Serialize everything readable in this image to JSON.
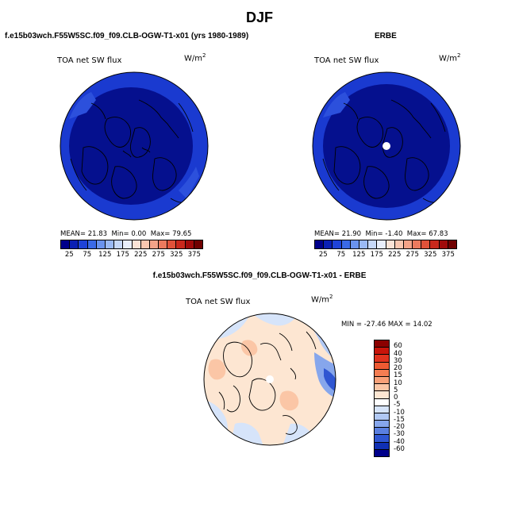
{
  "title": "DJF",
  "panel_left": {
    "case": "f.e15b03wch.F55W5SC.f09_f09.CLB-OGW-T1-x01 (yrs 1980-1989)",
    "variable": "TOA net SW flux",
    "units_base": "W/m",
    "units_exp": "2",
    "mean_label": "MEAN=",
    "mean": "21.83",
    "min_label": "Min=",
    "min": "0.00",
    "max_label": "Max=",
    "max": "79.65"
  },
  "panel_right": {
    "case": "ERBE",
    "variable": "TOA net SW flux",
    "units_base": "W/m",
    "units_exp": "2",
    "mean_label": "MEAN=",
    "mean": "21.90",
    "min_label": "Min=",
    "min": "-1.40",
    "max_label": "Max=",
    "max": "67.83"
  },
  "panel_diff": {
    "case": "f.e15b03wch.F55W5SC.f09_f09.CLB-OGW-T1-x01 - ERBE",
    "variable": "TOA net SW flux",
    "units_base": "W/m",
    "units_exp": "2",
    "stats": "MIN = -27.46 MAX =  14.02"
  },
  "colorbar_top": {
    "ticks": [
      "25",
      "75",
      "125",
      "175",
      "225",
      "275",
      "325",
      "375"
    ],
    "colors": [
      "#00008b",
      "#0a1fb4",
      "#1f43d8",
      "#3b6ae6",
      "#6a93ee",
      "#9ab9f4",
      "#c6d8f8",
      "#e8eefb",
      "#fbe3d6",
      "#f9c7b0",
      "#f4a388",
      "#ec7a5e",
      "#e0523a",
      "#c8281c",
      "#a00a0a",
      "#700000"
    ]
  },
  "colorbar_diff": {
    "ticks": [
      "60",
      "40",
      "30",
      "20",
      "15",
      "10",
      "5",
      "0",
      "-5",
      "-10",
      "-15",
      "-20",
      "-30",
      "-40",
      "-60"
    ],
    "colors": [
      "#8b0000",
      "#c8140a",
      "#e0321e",
      "#ee5a32",
      "#f47d52",
      "#f8a078",
      "#fbc6a6",
      "#fde6d2",
      "#ffffff",
      "#d6e4fa",
      "#b0c8f4",
      "#86a6ec",
      "#5a7fe0",
      "#2f56d2",
      "#1030b4",
      "#00008b"
    ]
  }
}
